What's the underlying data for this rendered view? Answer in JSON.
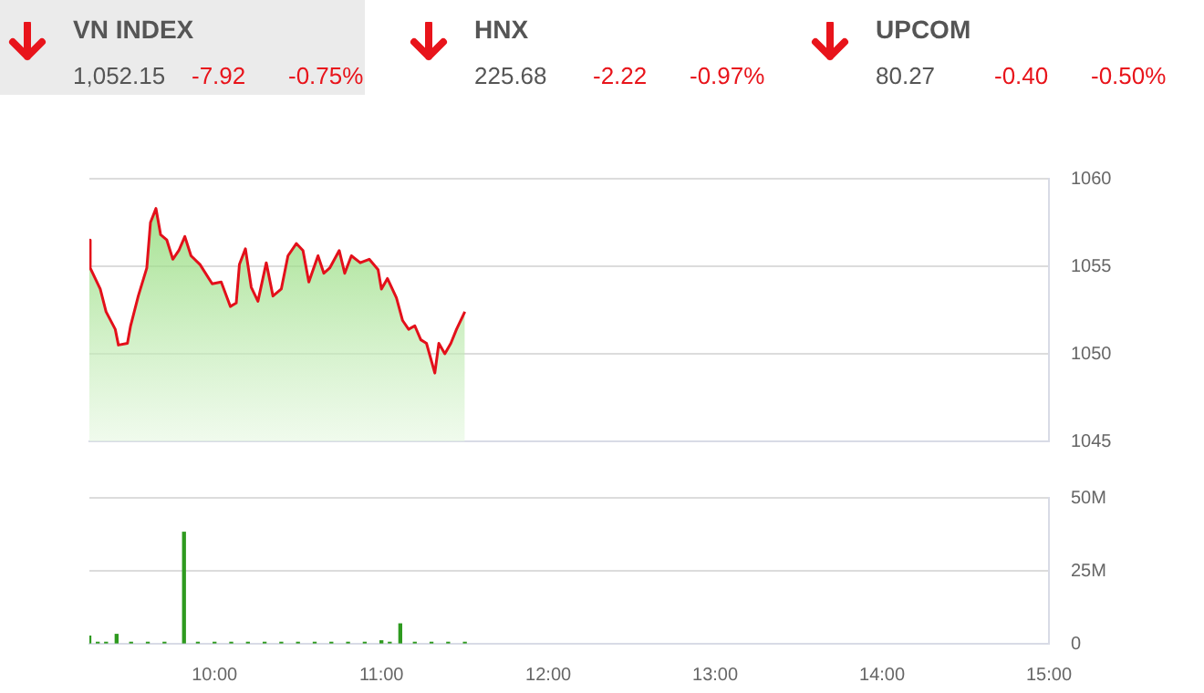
{
  "chart_data": [
    {
      "type": "other",
      "annotations": [
        "VN INDEX",
        "1,052.15",
        "-7.92",
        "-0.75%",
        "HNX",
        "225.68",
        "-2.22",
        "-0.97%",
        "UPCOM",
        "80.27",
        "-0.40",
        "-0.50%"
      ]
    },
    {
      "type": "area",
      "color": "#e3101a",
      "xlim": [
        9.25,
        15
      ],
      "ylim": [
        1045,
        1060
      ],
      "yticks": [
        1045,
        1050,
        1055,
        1060
      ],
      "grid": "y",
      "tick_labels": "y",
      "marker": "none",
      "x": [
        9.25,
        9.255,
        9.315,
        9.35,
        9.405,
        9.424,
        9.478,
        9.497,
        9.543,
        9.594,
        9.616,
        9.649,
        9.677,
        9.714,
        9.75,
        9.786,
        9.822,
        9.859,
        9.913,
        9.986,
        10.04,
        10.095,
        10.13,
        10.149,
        10.185,
        10.22,
        10.26,
        10.31,
        10.35,
        10.4,
        10.44,
        10.49,
        10.53,
        10.565,
        10.62,
        10.655,
        10.69,
        10.747,
        10.78,
        10.82,
        10.873,
        10.927,
        10.98,
        11.0,
        11.036,
        11.09,
        11.127,
        11.163,
        11.2,
        11.236,
        11.27,
        11.32,
        11.344,
        11.38,
        11.416,
        11.45,
        11.5
      ],
      "values": [
        1056.5,
        1054.9,
        1053.7,
        1052.4,
        1051.4,
        1050.5,
        1050.6,
        1051.6,
        1053.3,
        1054.9,
        1057.5,
        1058.3,
        1056.8,
        1056.5,
        1055.4,
        1055.9,
        1056.7,
        1055.6,
        1055.1,
        1054.0,
        1054.1,
        1052.7,
        1052.9,
        1055.1,
        1056.0,
        1053.8,
        1053.0,
        1055.2,
        1053.3,
        1053.7,
        1055.6,
        1056.3,
        1055.9,
        1054.1,
        1055.6,
        1054.6,
        1054.9,
        1055.9,
        1054.6,
        1055.6,
        1055.2,
        1055.4,
        1054.8,
        1053.7,
        1054.3,
        1053.2,
        1051.9,
        1051.4,
        1051.6,
        1050.8,
        1050.6,
        1048.9,
        1050.6,
        1050.0,
        1050.6,
        1051.4,
        1052.4
      ]
    },
    {
      "type": "bar",
      "color": "#2e9a1f",
      "xlim": [
        9.25,
        15
      ],
      "xticks": [
        {
          "value": 10,
          "label": "10:00"
        },
        {
          "value": 11,
          "label": "11:00"
        },
        {
          "value": 12,
          "label": "12:00"
        },
        {
          "value": 13,
          "label": "13:00"
        },
        {
          "value": 14,
          "label": "14:00"
        },
        {
          "value": 15,
          "label": "15:00"
        }
      ],
      "ylim": [
        0,
        50
      ],
      "yticks": [
        {
          "value": 0,
          "label": "0"
        },
        {
          "value": 25,
          "label": "25M"
        },
        {
          "value": 50,
          "label": "50M"
        }
      ],
      "grid": "y",
      "x": [
        9.25,
        9.3,
        9.35,
        9.413,
        9.5,
        9.6,
        9.7,
        9.817,
        9.9,
        10.0,
        10.1,
        10.2,
        10.3,
        10.4,
        10.5,
        10.6,
        10.7,
        10.8,
        10.9,
        11.0,
        11.05,
        11.113,
        11.2,
        11.3,
        11.4,
        11.5
      ],
      "values": [
        2.6,
        0.5,
        0.5,
        3.2,
        0.5,
        0.5,
        0.5,
        38.2,
        0.5,
        0.5,
        0.5,
        0.5,
        0.5,
        0.5,
        0.5,
        0.5,
        0.5,
        0.5,
        0.5,
        1,
        0.5,
        6.8,
        0.5,
        0.5,
        0.5,
        0.5
      ]
    }
  ]
}
